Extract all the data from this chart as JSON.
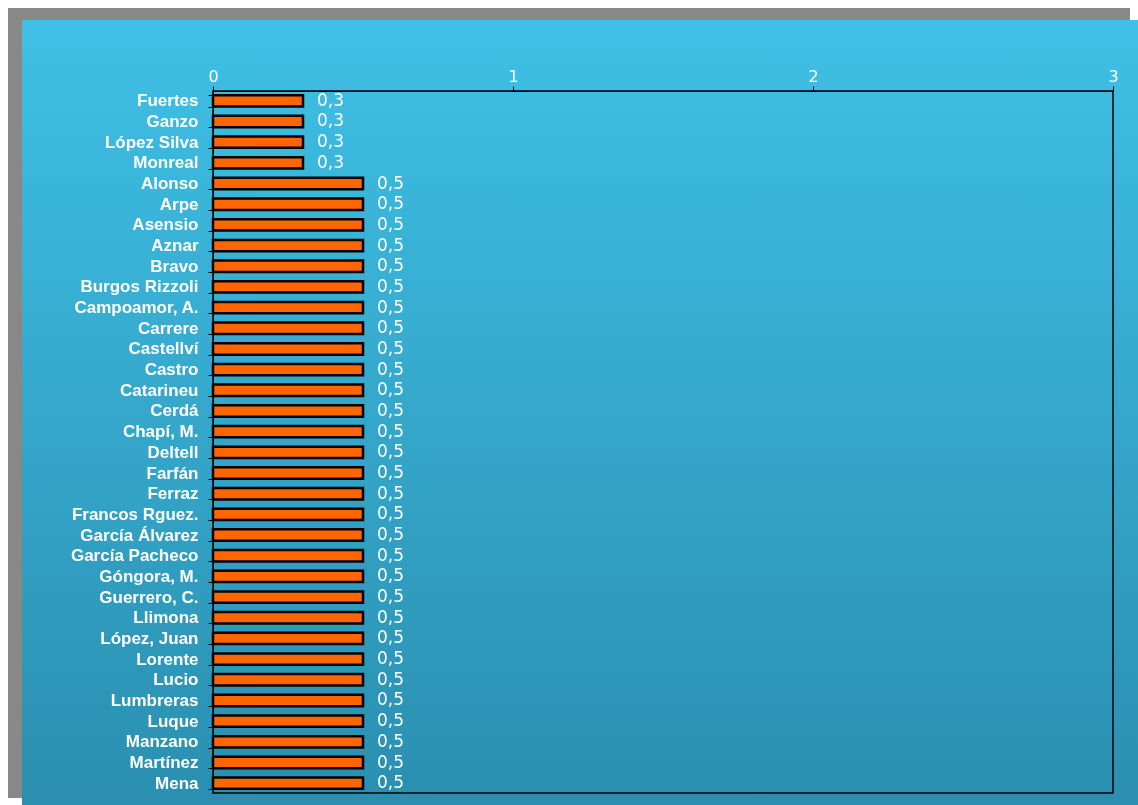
{
  "chart_data": {
    "type": "bar",
    "orientation": "horizontal",
    "categories": [
      "Fuertes",
      "Ganzo",
      "López Silva",
      "Monreal",
      "Alonso",
      "Arpe",
      "Asensio",
      "Aznar",
      "Bravo",
      "Burgos Rizzoli",
      "Campoamor, A.",
      "Carrere",
      "Castellví",
      "Castro",
      "Catarineu",
      "Cerdá",
      "Chapí, M.",
      "Deltell",
      "Farfán",
      "Ferraz",
      "Francos Rguez.",
      "García Álvarez",
      "García Pacheco",
      "Góngora, M.",
      "Guerrero, C.",
      "Llimona",
      "López, Juan",
      "Lorente",
      "Lucio",
      "Lumbreras",
      "Luque",
      "Manzano",
      "Martínez",
      "Mena"
    ],
    "values": [
      0.3,
      0.3,
      0.3,
      0.3,
      0.5,
      0.5,
      0.5,
      0.5,
      0.5,
      0.5,
      0.5,
      0.5,
      0.5,
      0.5,
      0.5,
      0.5,
      0.5,
      0.5,
      0.5,
      0.5,
      0.5,
      0.5,
      0.5,
      0.5,
      0.5,
      0.5,
      0.5,
      0.5,
      0.5,
      0.5,
      0.5,
      0.5,
      0.5,
      0.5
    ],
    "value_labels": [
      "0,3",
      "0,3",
      "0,3",
      "0,3",
      "0,5",
      "0,5",
      "0,5",
      "0,5",
      "0,5",
      "0,5",
      "0,5",
      "0,5",
      "0,5",
      "0,5",
      "0,5",
      "0,5",
      "0,5",
      "0,5",
      "0,5",
      "0,5",
      "0,5",
      "0,5",
      "0,5",
      "0,5",
      "0,5",
      "0,5",
      "0,5",
      "0,5",
      "0,5",
      "0,5",
      "0,5",
      "0,5",
      "0,5",
      "0,5"
    ],
    "color": "#ff6600",
    "xlim": [
      0,
      3
    ],
    "xticks": [
      0,
      1,
      2,
      3
    ],
    "grid": false
  }
}
